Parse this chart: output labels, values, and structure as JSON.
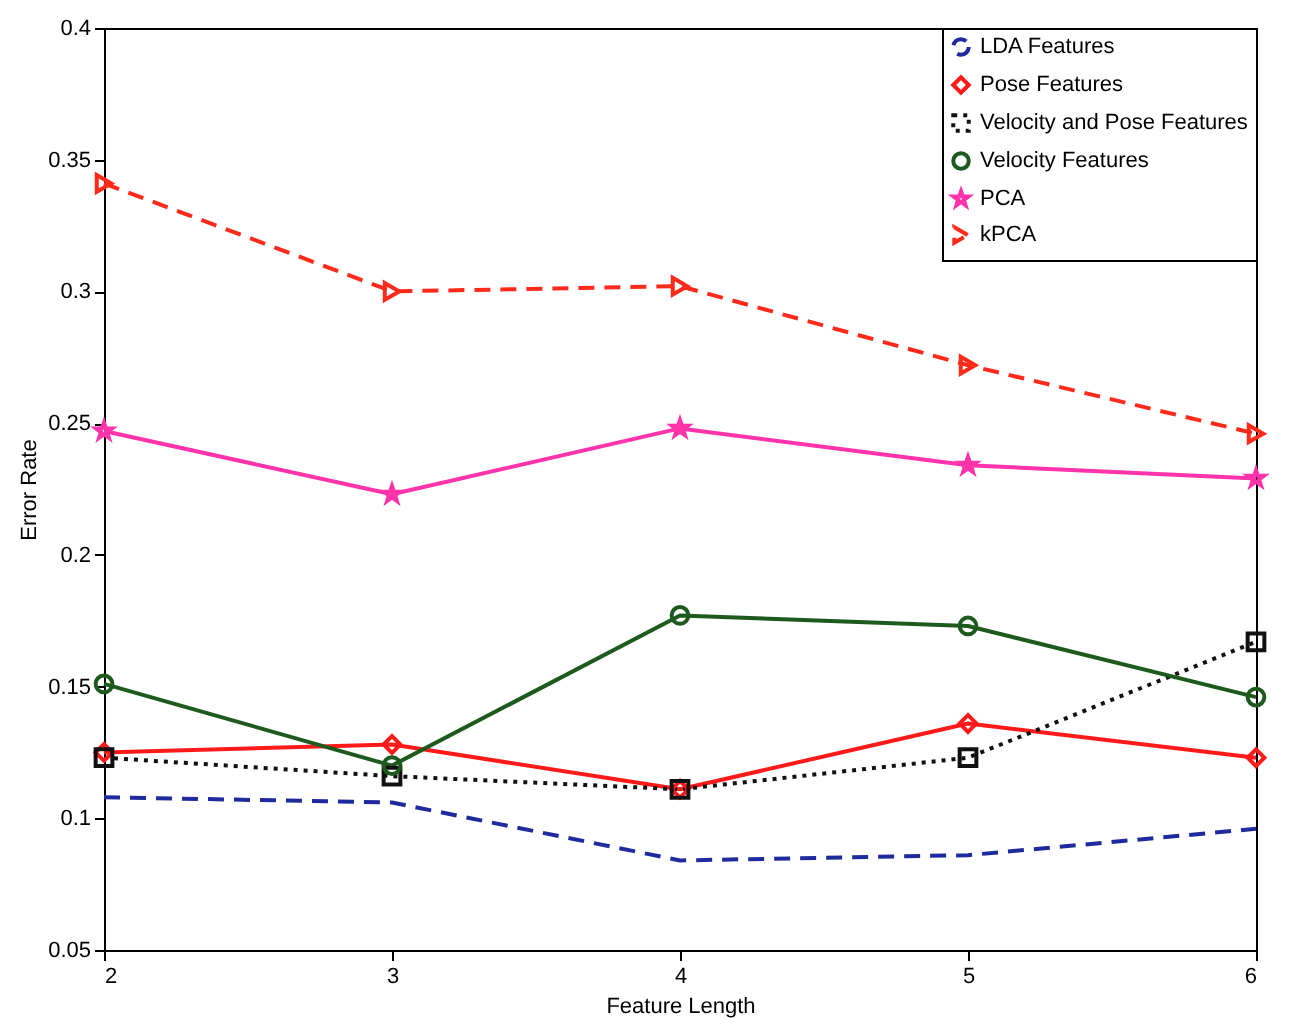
{
  "chart_data": {
    "type": "line",
    "xlabel": "Feature Length",
    "ylabel": "Error Rate",
    "x": [
      2,
      3,
      4,
      5,
      6
    ],
    "xlim": [
      2,
      6
    ],
    "xticks": [
      2,
      3,
      4,
      5,
      6
    ],
    "ylim": [
      0.05,
      0.4
    ],
    "yticks": [
      0.05,
      0.1,
      0.15,
      0.2,
      0.25,
      0.3,
      0.35,
      0.4
    ],
    "legend": "top right",
    "grid": false,
    "series": [
      {
        "name": "LDA Features",
        "color": "#1f2a9e",
        "marker": "none",
        "line_style": "dashed",
        "values": [
          0.108,
          0.106,
          0.084,
          0.086,
          0.096
        ]
      },
      {
        "name": "Pose Features",
        "color": "#ff1a1a",
        "marker": "diamond",
        "line_style": "solid",
        "values": [
          0.125,
          0.128,
          0.111,
          0.136,
          0.123
        ]
      },
      {
        "name": "Velocity and Pose Features",
        "color": "#111111",
        "marker": "square",
        "line_style": "dotted",
        "values": [
          0.123,
          0.116,
          0.111,
          0.123,
          0.167
        ]
      },
      {
        "name": "Velocity Features",
        "color": "#1e5a1e",
        "marker": "circle",
        "line_style": "solid",
        "values": [
          0.151,
          0.12,
          0.177,
          0.173,
          0.146
        ]
      },
      {
        "name": "PCA",
        "color": "#ff33aa",
        "marker": "star",
        "line_style": "solid",
        "values": [
          0.247,
          0.223,
          0.248,
          0.234,
          0.229
        ]
      },
      {
        "name": "kPCA",
        "color": "#ff2a1a",
        "marker": "triangle",
        "line_style": "dashed",
        "values": [
          0.341,
          0.3,
          0.302,
          0.272,
          0.246
        ]
      }
    ]
  }
}
